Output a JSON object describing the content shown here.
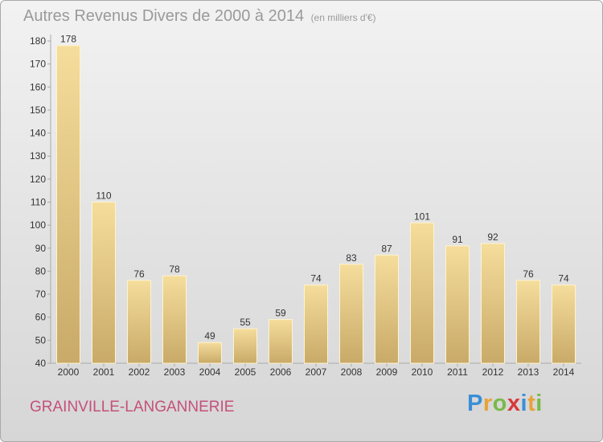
{
  "header": {
    "title": "Autres Revenus Divers de 2000 à 2014",
    "unit": "(en milliers d'€)"
  },
  "commune": "GRAINVILLE-LANGANNERIE",
  "brand": {
    "letters": [
      "P",
      "r",
      "o",
      "x",
      "i",
      "t",
      "i"
    ],
    "colors": [
      "#3a8fd6",
      "#e8a23b",
      "#79b94a",
      "#d83a3a",
      "#3a8fd6",
      "#e8a23b",
      "#79b94a"
    ]
  },
  "colors": {
    "bar_top": "#f5dd9c",
    "bar_bottom": "#c9aa68",
    "bar_stroke": "#fff3cf",
    "axis": "#aaaaaa",
    "gridline": "#dddddd",
    "text": "#333333"
  },
  "chart_data": {
    "type": "bar",
    "categories": [
      "2000",
      "2001",
      "2002",
      "2003",
      "2004",
      "2005",
      "2006",
      "2007",
      "2008",
      "2009",
      "2010",
      "2011",
      "2012",
      "2013",
      "2014"
    ],
    "values": [
      178,
      110,
      76,
      78,
      49,
      55,
      59,
      74,
      83,
      87,
      101,
      91,
      92,
      76,
      74
    ],
    "title": "Autres Revenus Divers de 2000 à 2014",
    "ylim": [
      40,
      180
    ],
    "yticks": [
      40,
      50,
      60,
      70,
      80,
      90,
      100,
      110,
      120,
      130,
      140,
      150,
      160,
      170,
      180
    ],
    "grid": false,
    "legend": "none"
  }
}
